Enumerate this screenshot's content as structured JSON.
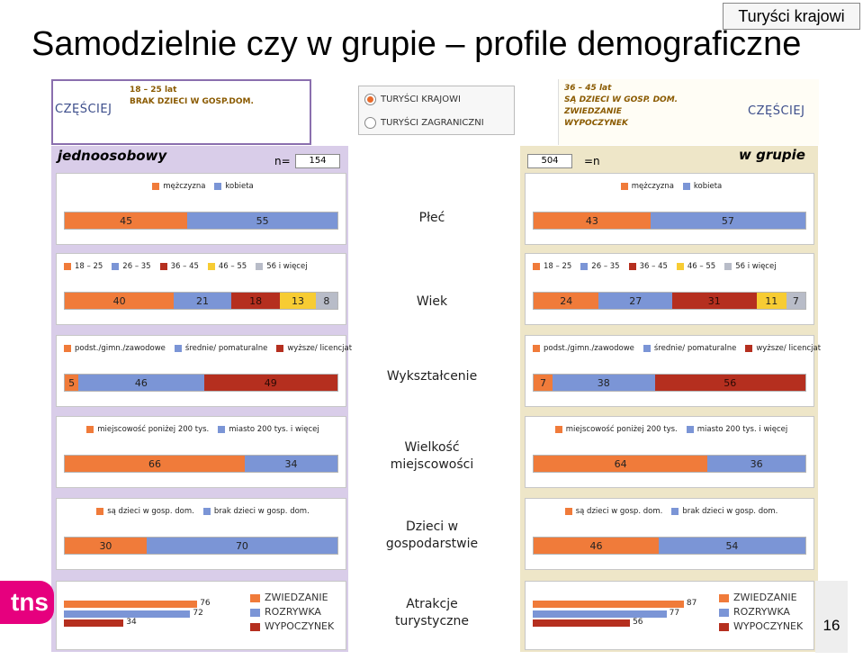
{
  "title": "Samodzielnie czy w grupie – profile demograficzne",
  "tag": "Turyści krajowi",
  "colors": {
    "orange": "#f07b3a",
    "blue": "#7b95d6",
    "darkred": "#b52f1f",
    "yellow": "#f7cc33",
    "grey": "#b8bcc8",
    "panel_left": "#d9cde9",
    "panel_right": "#eee6c8"
  },
  "info_left": {
    "lines": [
      "18 – 25 lat",
      "BRAK DZIECI W GOSP.DOM."
    ],
    "tag": "CZĘŚCIEJ"
  },
  "info_right": {
    "lines": [
      "36 – 45 lat",
      "SĄ DZIECI W GOSP. DOM.",
      "ZWIEDZANIE",
      "WYPOCZYNEK"
    ],
    "tag": "CZĘŚCIEJ"
  },
  "radio": {
    "options": [
      {
        "label": "TURYŚCI KRAJOWI",
        "selected": true
      },
      {
        "label": "TURYŚCI ZAGRANICZNI",
        "selected": false
      }
    ]
  },
  "panels": {
    "left": {
      "heading": "jednoosobowy",
      "n_label": "n=",
      "n_value": "154"
    },
    "right": {
      "heading": "w grupie",
      "n_label": "=n",
      "n_value": "504"
    }
  },
  "center_labels": [
    [
      "Płeć"
    ],
    [
      "Wiek"
    ],
    [
      "Wykształcenie"
    ],
    [
      "Wielkość",
      "miejscowości"
    ],
    [
      "Dzieci w",
      "gospodarstwie"
    ],
    [
      "Atrakcje",
      "turystyczne"
    ]
  ],
  "footer": {
    "logo": "tns",
    "page_number": "16"
  },
  "chart_data": {
    "type": "bar",
    "stacked_sections": [
      {
        "legend": [
          {
            "name": "mężczyzna",
            "color": "#f07b3a"
          },
          {
            "name": "kobieta",
            "color": "#7b95d6"
          }
        ],
        "left": [
          45,
          55
        ],
        "right": [
          43,
          57
        ]
      },
      {
        "legend": [
          {
            "name": "18 – 25",
            "color": "#f07b3a"
          },
          {
            "name": "26 – 35",
            "color": "#7b95d6"
          },
          {
            "name": "36 – 45",
            "color": "#b52f1f"
          },
          {
            "name": "46 – 55",
            "color": "#f7cc33"
          },
          {
            "name": "56 i więcej",
            "color": "#b8bcc8"
          }
        ],
        "left": [
          40,
          21,
          18,
          13,
          8
        ],
        "right": [
          24,
          27,
          31,
          11,
          7
        ]
      },
      {
        "legend": [
          {
            "name": "podst./gimn./zawodowe",
            "color": "#f07b3a"
          },
          {
            "name": "średnie/ pomaturalne",
            "color": "#7b95d6"
          },
          {
            "name": "wyższe/ licencjat",
            "color": "#b52f1f"
          }
        ],
        "left": [
          5,
          46,
          49
        ],
        "right": [
          7,
          38,
          56
        ]
      },
      {
        "legend": [
          {
            "name": "miejscowość poniżej 200 tys.",
            "color": "#f07b3a"
          },
          {
            "name": "miasto 200 tys. i więcej",
            "color": "#7b95d6"
          }
        ],
        "left": [
          66,
          34
        ],
        "right": [
          64,
          36
        ]
      },
      {
        "legend": [
          {
            "name": "są dzieci w gosp. dom.",
            "color": "#f07b3a"
          },
          {
            "name": "brak dzieci w gosp. dom.",
            "color": "#7b95d6"
          }
        ],
        "left": [
          30,
          70
        ],
        "right": [
          46,
          54
        ]
      }
    ],
    "attractions": {
      "type": "bar",
      "legend": [
        {
          "name": "ZWIEDZANIE",
          "color": "#f07b3a"
        },
        {
          "name": "ROZRYWKA",
          "color": "#7b95d6"
        },
        {
          "name": "WYPOCZYNEK",
          "color": "#b52f1f"
        }
      ],
      "left": [
        76,
        72,
        34
      ],
      "right": [
        87,
        77,
        56
      ],
      "xlim": [
        0,
        100
      ]
    }
  }
}
